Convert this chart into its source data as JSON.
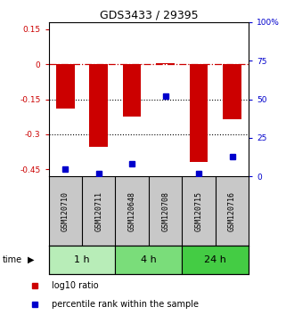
{
  "title": "GDS3433 / 29395",
  "samples": [
    "GSM120710",
    "GSM120711",
    "GSM120648",
    "GSM120708",
    "GSM120715",
    "GSM120716"
  ],
  "log10_ratio": [
    -0.19,
    -0.355,
    -0.225,
    0.005,
    -0.42,
    -0.235
  ],
  "percentile_rank": [
    5,
    2,
    8,
    52,
    2,
    13
  ],
  "time_groups": [
    {
      "label": "1 h",
      "samples": [
        0,
        1
      ],
      "color": "#b8edb8"
    },
    {
      "label": "4 h",
      "samples": [
        2,
        3
      ],
      "color": "#7add7a"
    },
    {
      "label": "24 h",
      "samples": [
        4,
        5
      ],
      "color": "#44cc44"
    }
  ],
  "ylim_left": [
    -0.48,
    0.18
  ],
  "ylim_right": [
    0,
    100
  ],
  "left_ticks": [
    0.15,
    0.0,
    -0.15,
    -0.3,
    -0.45
  ],
  "right_ticks": [
    100,
    75,
    50,
    25,
    0
  ],
  "bar_color": "#cc0000",
  "dot_color": "#0000cc",
  "zero_line_color": "#cc0000",
  "dotted_line_color": "#000000",
  "bar_width": 0.55,
  "legend_red_label": "log10 ratio",
  "legend_blue_label": "percentile rank within the sample",
  "bg_sample_color": "#c8c8c8",
  "title_fontsize": 9
}
